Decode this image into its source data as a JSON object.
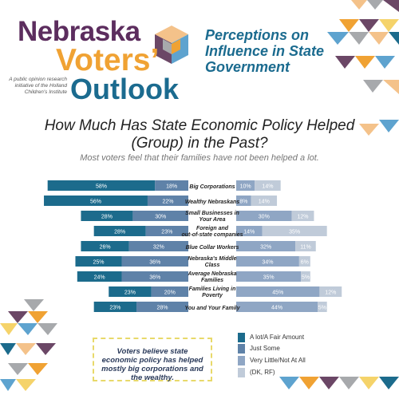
{
  "brand": {
    "line1": "Nebraska",
    "line2": "Voters’",
    "line3": "Outlook",
    "note": "A public opinion research initiative of the Holland Children's Institute"
  },
  "headline": "Perceptions on Influence in State Government",
  "colors": {
    "a_lot": "#1c6b8c",
    "just_some": "#5f82a8",
    "very_little": "#8fa6c4",
    "dk_rf": "#c0cbd9",
    "purple": "#6b4766",
    "orange": "#f0a233",
    "teal": "#1b6b8f",
    "sky": "#5ea3cf",
    "yellow": "#f5d36a",
    "peach": "#f4c28a",
    "grey": "#a7a9ac"
  },
  "callout": "Voters believe state economic policy has helped mostly big corporations and the wealthy.",
  "chart_data": {
    "type": "bar",
    "title": "How Much Has State Economic Policy Helped (Group) in the Past?",
    "subtitle": "Most voters feel that their families have not been helped a lot.",
    "categories": [
      "Big Corporations",
      "Wealthy Nebraskans",
      "Small Businesses in Your Area",
      "Foreign and out-of-state companies",
      "Blue Collar Workers",
      "Nebraska's Middle Class",
      "Average Nebraska Families",
      "Families Living in Poverty",
      "You and Your Family"
    ],
    "series": [
      {
        "name": "A lot/A Fair Amount",
        "values": [
          58,
          56,
          28,
          28,
          26,
          25,
          24,
          23,
          23
        ]
      },
      {
        "name": "Just Some",
        "values": [
          18,
          22,
          30,
          23,
          32,
          36,
          36,
          20,
          28
        ]
      },
      {
        "name": "Very Little/Not At All",
        "values": [
          10,
          8,
          30,
          14,
          32,
          34,
          35,
          45,
          44
        ]
      },
      {
        "name": "(DK, RF)",
        "values": [
          14,
          14,
          12,
          35,
          11,
          6,
          5,
          12,
          5
        ]
      }
    ],
    "legend_position": "bottom-right"
  }
}
